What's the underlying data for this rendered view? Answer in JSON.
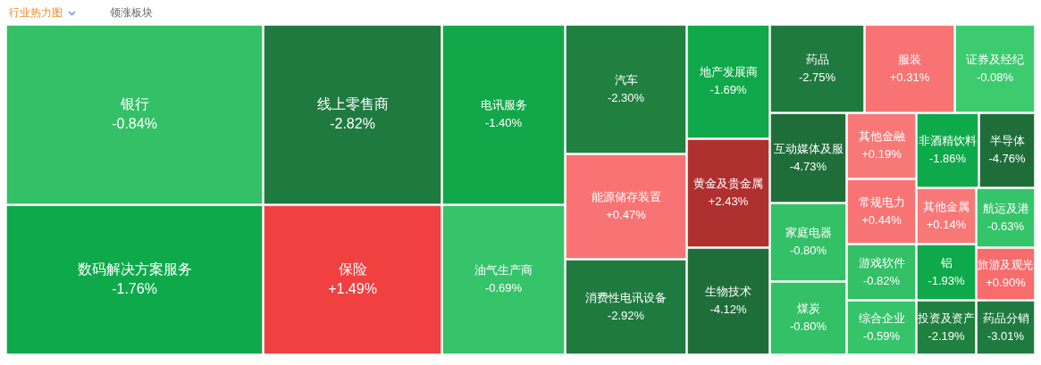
{
  "chart_data": {
    "type": "other",
    "annotations": [
      "行业热力图",
      "领涨板块"
    ],
    "categories": [
      "银行",
      "数码解决方案服务",
      "线上零售商",
      "保险",
      "电讯服务",
      "油气生产商",
      "汽车",
      "能源储存装置",
      "消费性电讯设备",
      "地产发展商",
      "黄金及贵金属",
      "生物技术",
      "药品",
      "互动媒体及服",
      "家庭电器",
      "煤炭",
      "服装",
      "证券及经纪",
      "其他金融",
      "常规电力",
      "游戏软件",
      "综合企业",
      "非酒精饮料",
      "半导体",
      "其他金属",
      "航运及港",
      "铝",
      "投资及资产",
      "旅游及观光",
      "药品分销"
    ],
    "values": [
      -0.84,
      -1.76,
      -2.82,
      1.49,
      -1.4,
      -0.69,
      -2.3,
      0.47,
      -2.92,
      -1.69,
      2.43,
      -4.12,
      -2.75,
      -4.73,
      -0.8,
      -0.8,
      0.31,
      -0.08,
      0.19,
      0.44,
      -0.82,
      -0.59,
      -1.86,
      -4.76,
      0.14,
      -0.63,
      -1.93,
      -2.19,
      0.9,
      -3.01
    ],
    "value_labels": [
      "-0.84%",
      "-1.76%",
      "-2.82%",
      "+1.49%",
      "-1.40%",
      "-0.69%",
      "-2.30%",
      "+0.47%",
      "-2.92%",
      "-1.69%",
      "+2.43%",
      "-4.12%",
      "-2.75%",
      "-4.73%",
      "-0.80%",
      "-0.80%",
      "+0.31%",
      "-0.08%",
      "+0.19%",
      "+0.44%",
      "-0.82%",
      "-0.59%",
      "-1.86%",
      "-4.76%",
      "+0.14%",
      "-0.63%",
      "-1.93%",
      "-2.19%",
      "+0.90%",
      "-3.01%"
    ],
    "colors": [
      "#33c066",
      "#0ea94a",
      "#1f7a3f",
      "#f04040",
      "#12a84a",
      "#35c46a",
      "#1f803f",
      "#f87474",
      "#1f7a3f",
      "#0fa84a",
      "#b03030",
      "#1f6e3a",
      "#1f7a3f",
      "#1f6e3a",
      "#33c066",
      "#33c066",
      "#f87474",
      "#3dcb70",
      "#f87878",
      "#f87474",
      "#33c066",
      "#35c46a",
      "#0ea94a",
      "#1f6e3a",
      "#f87878",
      "#35c46a",
      "#0ea94a",
      "#1f803f",
      "#f86c6c",
      "#1f7a3f"
    ]
  }
}
